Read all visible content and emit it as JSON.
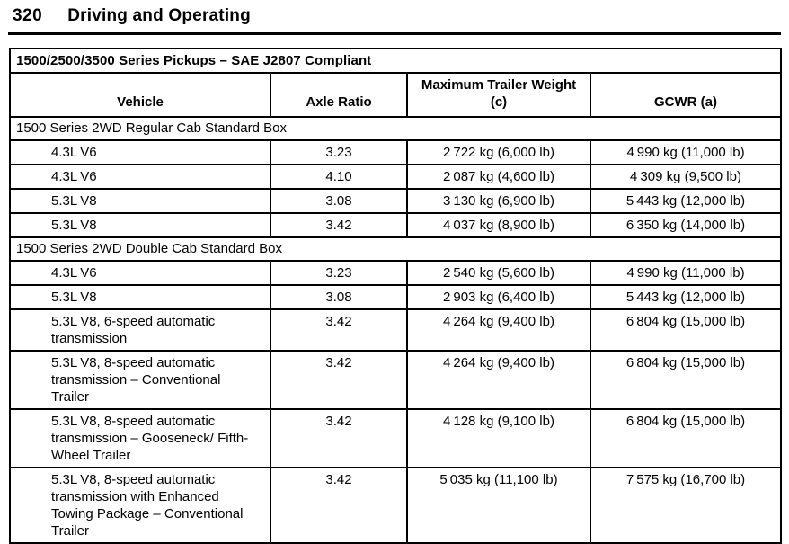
{
  "page": {
    "number": "320",
    "title": "Driving and Operating"
  },
  "table": {
    "title": "1500/2500/3500 Series Pickups – SAE J2807 Compliant",
    "columns": [
      "Vehicle",
      "Axle Ratio",
      "Maximum Trailer Weight (c)",
      "GCWR (a)"
    ],
    "rows": [
      {
        "type": "section",
        "label": "1500 Series 2WD Regular Cab Standard Box"
      },
      {
        "type": "data",
        "vehicle": "4.3L V6",
        "axle_ratio": "3.23",
        "max_trailer_weight": "2 722 kg (6,000 lb)",
        "gcwr": "4 990 kg (11,000 lb)"
      },
      {
        "type": "data",
        "vehicle": "4.3L V6",
        "axle_ratio": "4.10",
        "max_trailer_weight": "2 087 kg (4,600 lb)",
        "gcwr": "4 309 kg (9,500 lb)"
      },
      {
        "type": "data",
        "vehicle": "5.3L V8",
        "axle_ratio": "3.08",
        "max_trailer_weight": "3 130 kg (6,900 lb)",
        "gcwr": "5 443 kg (12,000 lb)"
      },
      {
        "type": "data",
        "vehicle": "5.3L V8",
        "axle_ratio": "3.42",
        "max_trailer_weight": "4 037 kg (8,900 lb)",
        "gcwr": "6 350 kg (14,000 lb)"
      },
      {
        "type": "section",
        "label": "1500 Series 2WD Double Cab Standard Box"
      },
      {
        "type": "data",
        "vehicle": "4.3L V6",
        "axle_ratio": "3.23",
        "max_trailer_weight": "2 540 kg (5,600 lb)",
        "gcwr": "4 990 kg (11,000 lb)"
      },
      {
        "type": "data",
        "vehicle": "5.3L V8",
        "axle_ratio": "3.08",
        "max_trailer_weight": "2 903 kg (6,400 lb)",
        "gcwr": "5 443 kg (12,000 lb)"
      },
      {
        "type": "data",
        "vehicle": "5.3L V8, 6-speed automatic transmission",
        "axle_ratio": "3.42",
        "max_trailer_weight": "4 264 kg (9,400 lb)",
        "gcwr": "6 804 kg (15,000 lb)"
      },
      {
        "type": "data",
        "vehicle": "5.3L V8, 8-speed automatic transmission – Conventional Trailer",
        "axle_ratio": "3.42",
        "max_trailer_weight": "4 264 kg (9,400 lb)",
        "gcwr": "6 804 kg (15,000 lb)"
      },
      {
        "type": "data",
        "vehicle": "5.3L V8, 8-speed automatic transmission – Gooseneck/ Fifth-Wheel Trailer",
        "axle_ratio": "3.42",
        "max_trailer_weight": "4 128 kg (9,100 lb)",
        "gcwr": "6 804 kg (15,000 lb)"
      },
      {
        "type": "data",
        "vehicle": "5.3L V8, 8-speed automatic transmission with Enhanced Towing Package – Conventional Trailer",
        "axle_ratio": "3.42",
        "max_trailer_weight": "5 035 kg (11,100 lb)",
        "gcwr": "7 575 kg (16,700 lb)"
      }
    ]
  }
}
